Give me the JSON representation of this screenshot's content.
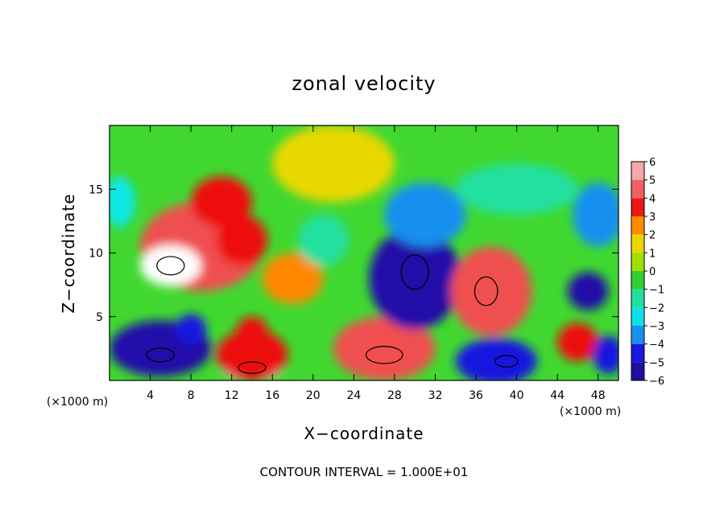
{
  "chart_data": {
    "type": "heatmap",
    "title": "zonal velocity",
    "xlabel": "X−coordinate",
    "ylabel": "Z−coordinate",
    "x_unit_left": "(×1000 m)",
    "x_unit_right": "(×1000 m)",
    "footer": "CONTOUR INTERVAL = 1.000E+01",
    "xlim": [
      0,
      50
    ],
    "ylim": [
      0,
      20
    ],
    "x_ticks": [
      4,
      8,
      12,
      16,
      20,
      24,
      28,
      32,
      36,
      40,
      44,
      48
    ],
    "x_tick_labels": [
      "4",
      "8",
      "12",
      "16",
      "20",
      "24",
      "28",
      "32",
      "36",
      "40",
      "44",
      "48"
    ],
    "y_ticks": [
      5,
      10,
      15
    ],
    "y_tick_labels": [
      "5",
      "10",
      "15"
    ],
    "colorbar": {
      "levels": [
        6,
        5,
        4,
        3,
        2,
        1,
        0,
        -1,
        -2,
        -3,
        -4,
        -5,
        -6
      ],
      "labels": [
        "6",
        "5",
        "4",
        "3",
        "2",
        "1",
        "0",
        "−1",
        "−2",
        "−3",
        "−4",
        "−5",
        "−6"
      ],
      "colors": [
        "#f4a0a0",
        "#f05050",
        "#ee1010",
        "#ff8800",
        "#e8d800",
        "#a8e000",
        "#40d820",
        "#20e0a0",
        "#10e8e8",
        "#1890f0",
        "#1818e0",
        "#2010a8",
        "#6010a0"
      ]
    },
    "background_color": "#40d830",
    "features": [
      {
        "x": 9,
        "y": 10.5,
        "value": 5,
        "rx": 6,
        "ry": 3.5
      },
      {
        "x": 6,
        "y": 9,
        "value": 8,
        "rx": 3,
        "ry": 1.6
      },
      {
        "x": 11,
        "y": 14,
        "value": 4,
        "rx": 3,
        "ry": 2
      },
      {
        "x": 13,
        "y": 11,
        "value": 4,
        "rx": 2.5,
        "ry": 2
      },
      {
        "x": 22,
        "y": 17,
        "value": 2,
        "rx": 6,
        "ry": 3
      },
      {
        "x": 18,
        "y": 8,
        "value": 2.5,
        "rx": 3,
        "ry": 2
      },
      {
        "x": 5,
        "y": 2,
        "value": 8,
        "rx": 3,
        "ry": 1.2
      },
      {
        "x": 5,
        "y": 2.5,
        "value": -5,
        "rx": 5,
        "ry": 2.2
      },
      {
        "x": 8,
        "y": 4,
        "value": -4,
        "rx": 1.5,
        "ry": 1.2
      },
      {
        "x": 14,
        "y": 1,
        "value": 8,
        "rx": 3,
        "ry": 1
      },
      {
        "x": 14,
        "y": 2,
        "value": 4,
        "rx": 3.5,
        "ry": 2
      },
      {
        "x": 14,
        "y": 4,
        "value": 4,
        "rx": 1.5,
        "ry": 1
      },
      {
        "x": 27,
        "y": 2,
        "value": 8,
        "rx": 4,
        "ry": 1.5
      },
      {
        "x": 27,
        "y": 2.5,
        "value": 5,
        "rx": 5,
        "ry": 2.5
      },
      {
        "x": 30,
        "y": 8.5,
        "value": 8,
        "rx": 3,
        "ry": 3
      },
      {
        "x": 30,
        "y": 8,
        "value": -5,
        "rx": 4.5,
        "ry": 4
      },
      {
        "x": 31,
        "y": 13,
        "value": -3,
        "rx": 4,
        "ry": 2.5
      },
      {
        "x": 37,
        "y": 7,
        "value": 8,
        "rx": 2.5,
        "ry": 2.5
      },
      {
        "x": 37.5,
        "y": 7,
        "value": 5,
        "rx": 4,
        "ry": 3.5
      },
      {
        "x": 39,
        "y": 1.5,
        "value": 8,
        "rx": 2.5,
        "ry": 1
      },
      {
        "x": 38,
        "y": 1.5,
        "value": -4,
        "rx": 4,
        "ry": 1.8
      },
      {
        "x": 47,
        "y": 7,
        "value": -5,
        "rx": 2,
        "ry": 1.5
      },
      {
        "x": 48,
        "y": 13,
        "value": -3,
        "rx": 2.5,
        "ry": 2.5
      },
      {
        "x": 46,
        "y": 3,
        "value": 4,
        "rx": 2,
        "ry": 1.5
      },
      {
        "x": 49,
        "y": 2,
        "value": -4,
        "rx": 1.5,
        "ry": 1.5
      },
      {
        "x": 1,
        "y": 14,
        "value": -2,
        "rx": 1.5,
        "ry": 2
      },
      {
        "x": 21,
        "y": 11,
        "value": -1,
        "rx": 2.5,
        "ry": 2
      },
      {
        "x": 40,
        "y": 15,
        "value": -1,
        "rx": 6,
        "ry": 2
      }
    ]
  }
}
